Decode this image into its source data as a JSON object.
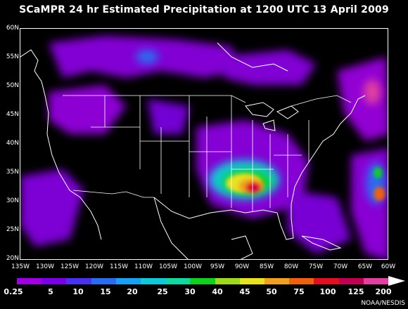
{
  "title": "SCaMPR 24 hr Estimated Precipitation at 1200 UTC 13 April 2009",
  "map": {
    "lat_ticks": [
      "60N",
      "55N",
      "50N",
      "45N",
      "40N",
      "35N",
      "30N",
      "25N",
      "20N"
    ],
    "lon_ticks": [
      "135W",
      "130W",
      "125W",
      "120W",
      "115W",
      "110W",
      "105W",
      "100W",
      "95W",
      "90W",
      "85W",
      "80W",
      "75W",
      "70W",
      "65W",
      "60W"
    ],
    "background_color": "#000000",
    "boundary_color": "#ffffff"
  },
  "legend": {
    "labels": [
      "0.25",
      "5",
      "10",
      "15",
      "20",
      "25",
      "30",
      "40",
      "45",
      "50",
      "75",
      "100",
      "125",
      "200"
    ],
    "colors": [
      "#a000e0",
      "#7a00e8",
      "#4a30f0",
      "#2a6cf0",
      "#1aa0f0",
      "#10c8d8",
      "#10d8a0",
      "#10d020",
      "#a0d820",
      "#e8e020",
      "#f0a020",
      "#f06010",
      "#e01020",
      "#c00050",
      "#e040a0"
    ]
  },
  "credit": "NOAA/NESDIS"
}
